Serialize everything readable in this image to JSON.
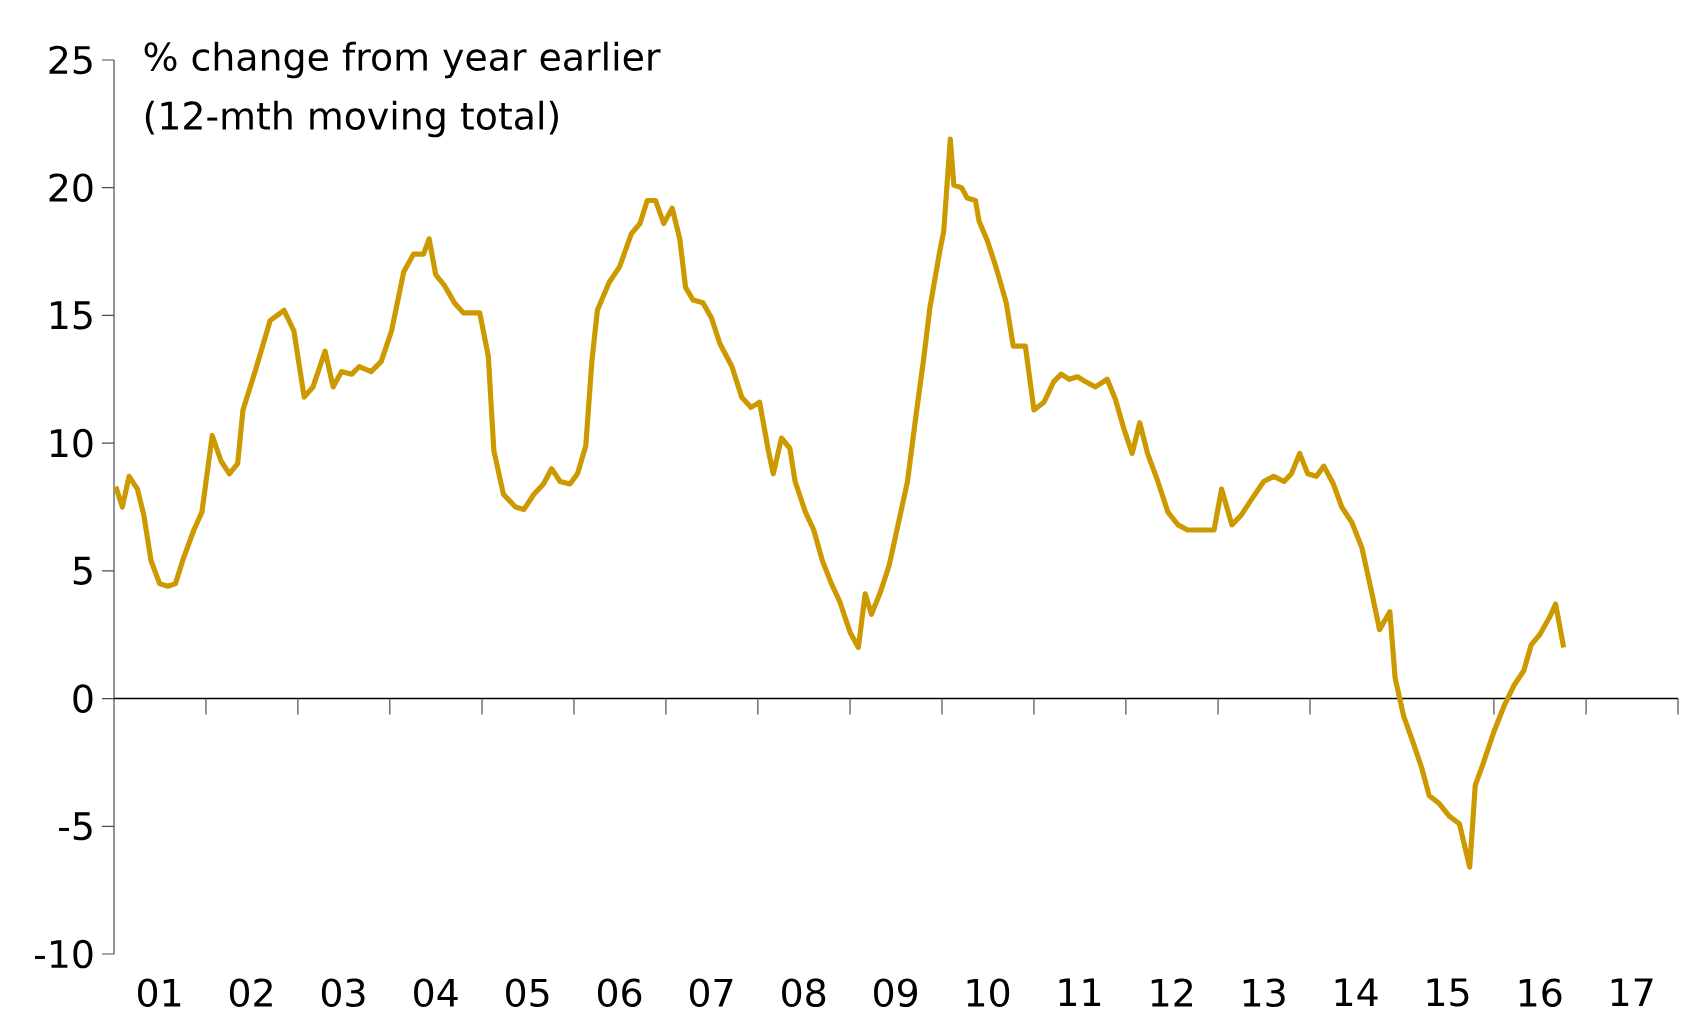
{
  "chart_data": {
    "type": "line",
    "title": "% change from year earlier",
    "subtitle": "(12-mth moving total)",
    "xlim": [
      "2001-01-01",
      "2018-01-01"
    ],
    "ylim": [
      -10,
      25
    ],
    "yticks": [
      -10,
      -5,
      0,
      5,
      10,
      15,
      20,
      25
    ],
    "xticks": [
      {
        "value": "2001-07-01",
        "label": "01"
      },
      {
        "value": "2002-07-01",
        "label": "02"
      },
      {
        "value": "2003-07-01",
        "label": "03"
      },
      {
        "value": "2004-07-01",
        "label": "04"
      },
      {
        "value": "2005-07-01",
        "label": "05"
      },
      {
        "value": "2006-07-01",
        "label": "06"
      },
      {
        "value": "2007-07-01",
        "label": "07"
      },
      {
        "value": "2008-07-01",
        "label": "08"
      },
      {
        "value": "2009-07-01",
        "label": "09"
      },
      {
        "value": "2010-07-01",
        "label": "10"
      },
      {
        "value": "2011-07-01",
        "label": "11"
      },
      {
        "value": "2012-07-01",
        "label": "12"
      },
      {
        "value": "2013-07-01",
        "label": "13"
      },
      {
        "value": "2014-07-01",
        "label": "14"
      },
      {
        "value": "2015-07-01",
        "label": "15"
      },
      {
        "value": "2016-07-01",
        "label": "16"
      },
      {
        "value": "2017-07-01",
        "label": "17"
      },
      {
        "value": "2002-01-01",
        "label": null
      },
      {
        "value": "2003-01-01",
        "label": null
      },
      {
        "value": "2004-01-01",
        "label": null
      },
      {
        "value": "2005-01-01",
        "label": null
      },
      {
        "value": "2006-01-01",
        "label": null
      },
      {
        "value": "2007-01-01",
        "label": null
      },
      {
        "value": "2008-01-01",
        "label": null
      },
      {
        "value": "2009-01-01",
        "label": null
      },
      {
        "value": "2010-01-01",
        "label": null
      },
      {
        "value": "2011-01-01",
        "label": null
      },
      {
        "value": "2012-01-01",
        "label": null
      },
      {
        "value": "2013-01-01",
        "label": null
      },
      {
        "value": "2014-01-01",
        "label": null
      },
      {
        "value": "2015-01-01",
        "label": null
      },
      {
        "value": "2016-01-01",
        "label": null
      },
      {
        "value": "2017-01-01",
        "label": null
      },
      {
        "value": "2018-01-01",
        "label": null
      }
    ],
    "series": [
      {
        "color": "#cc9900",
        "x": [
          "2001-01-08",
          "2001-02-03",
          "2001-03-02",
          "2001-04-04",
          "2001-04-29",
          "2001-05-28",
          "2001-07-01",
          "2001-08-03",
          "2001-09-02",
          "2001-10-04",
          "2001-11-14",
          "2001-12-16",
          "2002-01-26",
          "2002-03-02",
          "2002-04-04",
          "2002-05-07",
          "2002-05-28",
          "2002-07-15",
          "2002-09-13",
          "2002-11-07",
          "2002-12-16",
          "2003-01-26",
          "2003-03-02",
          "2003-04-19",
          "2003-05-21",
          "2003-06-23",
          "2003-08-03",
          "2003-09-02",
          "2003-10-19",
          "2003-11-28",
          "2004-01-08",
          "2004-02-25",
          "2004-04-04",
          "2004-05-14",
          "2004-06-05",
          "2004-07-01",
          "2004-08-03",
          "2004-09-13",
          "2004-10-19",
          "2004-12-23",
          "2005-01-26",
          "2005-02-17",
          "2005-03-27",
          "2005-05-14",
          "2005-06-16",
          "2005-07-26",
          "2005-09-02",
          "2005-10-04",
          "2005-11-07",
          "2005-12-16",
          "2006-01-15",
          "2006-02-17",
          "2006-03-13",
          "2006-04-04",
          "2006-05-21",
          "2006-07-01",
          "2006-08-17",
          "2006-09-20",
          "2006-10-19",
          "2006-11-21",
          "2006-12-23",
          "2007-01-26",
          "2007-02-25",
          "2007-03-20",
          "2007-04-19",
          "2007-05-28",
          "2007-07-01",
          "2007-08-03",
          "2007-09-20",
          "2007-10-29",
          "2007-12-05",
          "2008-01-08",
          "2008-02-10",
          "2008-03-02",
          "2008-04-04",
          "2008-05-07",
          "2008-05-28",
          "2008-07-08",
          "2008-08-10",
          "2008-09-13",
          "2008-10-19",
          "2008-11-21",
          "2009-01-01",
          "2009-02-03",
          "2009-03-02",
          "2009-03-27",
          "2009-04-29",
          "2009-06-05",
          "2009-07-15",
          "2009-08-17",
          "2009-09-20",
          "2009-10-19",
          "2009-11-14",
          "2009-12-23",
          "2010-01-08",
          "2010-02-03",
          "2010-02-17",
          "2010-03-20",
          "2010-04-11",
          "2010-05-14",
          "2010-05-28",
          "2010-07-01",
          "2010-08-03",
          "2010-09-13",
          "2010-10-11",
          "2010-11-28",
          "2011-01-01",
          "2011-02-10",
          "2011-03-20",
          "2011-04-19",
          "2011-05-21",
          "2011-06-23",
          "2011-07-26",
          "2011-09-02",
          "2011-10-19",
          "2011-11-21",
          "2011-12-23",
          "2012-01-26",
          "2012-02-25",
          "2012-03-27",
          "2012-05-07",
          "2012-06-16",
          "2012-07-26",
          "2012-09-02",
          "2012-10-19",
          "2012-12-16",
          "2013-01-15",
          "2013-02-25",
          "2013-04-04",
          "2013-05-14",
          "2013-07-01",
          "2013-08-10",
          "2013-09-20",
          "2013-10-19",
          "2013-11-21",
          "2013-12-23",
          "2014-01-26",
          "2014-02-25",
          "2014-04-04",
          "2014-05-07",
          "2014-06-16",
          "2014-07-26",
          "2014-09-02",
          "2014-10-04",
          "2014-11-14",
          "2014-12-05",
          "2015-01-08",
          "2015-02-10",
          "2015-03-20",
          "2015-04-19",
          "2015-05-28",
          "2015-07-08",
          "2015-08-17",
          "2015-09-27",
          "2015-10-19",
          "2015-11-21",
          "2016-01-01",
          "2016-02-10",
          "2016-03-20",
          "2016-04-29",
          "2016-05-28",
          "2016-07-01",
          "2016-08-10",
          "2016-09-02",
          "2016-10-04"
        ],
        "values": [
          8.3,
          7.5,
          8.7,
          8.2,
          7.2,
          5.4,
          4.5,
          4.4,
          4.5,
          5.5,
          6.6,
          7.3,
          10.3,
          9.3,
          8.8,
          9.2,
          11.3,
          12.8,
          14.8,
          15.2,
          14.4,
          11.8,
          12.2,
          13.6,
          12.2,
          12.8,
          12.7,
          13.0,
          12.8,
          13.2,
          14.4,
          16.7,
          17.4,
          17.4,
          18.0,
          16.6,
          16.2,
          15.5,
          15.1,
          15.1,
          13.4,
          9.7,
          8.0,
          7.5,
          7.4,
          8.0,
          8.4,
          9.0,
          8.5,
          8.4,
          8.8,
          9.9,
          13.2,
          15.2,
          16.3,
          16.9,
          18.2,
          18.6,
          19.5,
          19.5,
          18.6,
          19.2,
          18.0,
          16.1,
          15.6,
          15.5,
          14.9,
          13.9,
          13.0,
          11.8,
          11.4,
          11.6,
          9.8,
          8.8,
          10.2,
          9.8,
          8.5,
          7.3,
          6.6,
          5.4,
          4.5,
          3.8,
          2.6,
          2.0,
          4.1,
          3.3,
          4.1,
          5.2,
          7.0,
          8.5,
          11.1,
          13.2,
          15.3,
          17.5,
          18.3,
          21.9,
          20.1,
          20.0,
          19.6,
          19.5,
          18.7,
          17.9,
          16.9,
          15.5,
          13.8,
          13.8,
          11.3,
          11.6,
          12.4,
          12.7,
          12.5,
          12.6,
          12.4,
          12.2,
          12.5,
          11.7,
          10.6,
          9.6,
          10.8,
          9.6,
          8.5,
          7.3,
          6.8,
          6.6,
          6.6,
          6.6,
          8.2,
          6.8,
          7.2,
          7.8,
          8.5,
          8.7,
          8.5,
          8.8,
          9.6,
          8.8,
          8.7,
          9.1,
          8.4,
          7.5,
          6.9,
          5.9,
          4.2,
          2.7,
          3.4,
          0.8,
          -0.7,
          -1.6,
          -2.7,
          -3.8,
          -4.1,
          -4.6,
          -4.9,
          -6.6,
          -3.4,
          -2.5,
          -1.3,
          -0.3,
          0.5,
          1.1,
          2.1,
          2.5,
          3.2,
          3.7,
          2.0
        ]
      }
    ]
  }
}
